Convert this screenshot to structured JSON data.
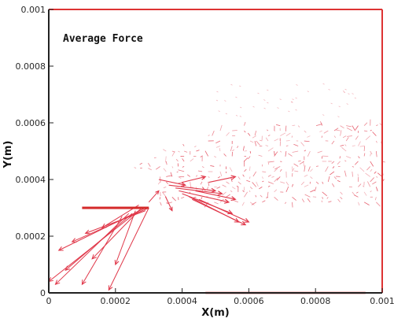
{
  "chart_data": {
    "type": "scatter",
    "title": "Average Force",
    "xlabel": "X(m)",
    "ylabel": "Y(m)",
    "xlim": [
      0,
      0.001
    ],
    "ylim": [
      0,
      0.001
    ],
    "x_ticks": [
      "0",
      "0.0002",
      "0.0004",
      "0.0006",
      "0.0008",
      "0.001"
    ],
    "y_ticks": [
      "0",
      "0.0002",
      "0.0004",
      "0.0006",
      "0.0008",
      "0.001"
    ],
    "grid": false,
    "colors": {
      "frame": "#dd3333",
      "vectors": "#e0384a",
      "plate": "#d42a2a",
      "axis": "#222222"
    },
    "plate_segments": [
      {
        "x": [
          0.0001,
          0.0003
        ],
        "y": [
          0.0003,
          0.0003
        ]
      },
      {
        "x": [
          0.00047,
          0.00095
        ],
        "y": [
          0.0,
          0.0
        ]
      }
    ],
    "vector_field": {
      "grid_x": [
        0.0001,
        0.001
      ],
      "grid_y_top": [
        0.00045,
        0.0006
      ],
      "grid_y_bottom": 0.00032,
      "spacing": 1.8e-05
    },
    "jet_vectors": [
      {
        "from": [
          0.0003,
          0.0003
        ],
        "to": [
          7e-05,
          0.00018
        ]
      },
      {
        "from": [
          0.00029,
          0.0003
        ],
        "to": [
          3e-05,
          0.00015
        ]
      },
      {
        "from": [
          0.00028,
          0.0003
        ],
        "to": [
          0.0,
          4e-05
        ]
      },
      {
        "from": [
          0.00027,
          0.00029
        ],
        "to": [
          0.00013,
          0.00012
        ]
      },
      {
        "from": [
          0.00026,
          0.00029
        ],
        "to": [
          0.0002,
          0.0001
        ]
      },
      {
        "from": [
          0.00025,
          0.00028
        ],
        "to": [
          5e-05,
          8e-05
        ]
      },
      {
        "from": [
          0.00024,
          0.00028
        ],
        "to": [
          2e-05,
          3e-05
        ]
      },
      {
        "from": [
          0.00022,
          0.00027
        ],
        "to": [
          0.0001,
          3e-05
        ]
      },
      {
        "from": [
          0.0003,
          0.0003
        ],
        "to": [
          0.00018,
          1e-05
        ]
      },
      {
        "from": [
          0.00029,
          0.00029
        ],
        "to": [
          0.00011,
          0.00021
        ]
      },
      {
        "from": [
          0.00027,
          0.00031
        ],
        "to": [
          0.00016,
          0.00023
        ]
      },
      {
        "from": [
          0.0003,
          0.00032
        ],
        "to": [
          0.00033,
          0.00036
        ]
      }
    ],
    "vortex_vectors": [
      {
        "from": [
          0.00038,
          0.00037
        ],
        "to": [
          0.00052,
          0.00035
        ]
      },
      {
        "from": [
          0.00039,
          0.00036
        ],
        "to": [
          0.00054,
          0.00032
        ]
      },
      {
        "from": [
          0.0004,
          0.00035
        ],
        "to": [
          0.00055,
          0.00028
        ]
      },
      {
        "from": [
          0.00042,
          0.00034
        ],
        "to": [
          0.00057,
          0.00025
        ]
      },
      {
        "from": [
          0.00043,
          0.00033
        ],
        "to": [
          0.00059,
          0.00024
        ]
      },
      {
        "from": [
          0.00045,
          0.00033
        ],
        "to": [
          0.0006,
          0.00025
        ]
      },
      {
        "from": [
          0.00044,
          0.00036
        ],
        "to": [
          0.00056,
          0.00033
        ]
      },
      {
        "from": [
          0.00036,
          0.00038
        ],
        "to": [
          0.0005,
          0.00036
        ]
      },
      {
        "from": [
          0.00048,
          0.00039
        ],
        "to": [
          0.00056,
          0.00041
        ]
      },
      {
        "from": [
          0.0004,
          0.00039
        ],
        "to": [
          0.00047,
          0.00041
        ]
      },
      {
        "from": [
          0.00033,
          0.0004
        ],
        "to": [
          0.00041,
          0.00038
        ]
      },
      {
        "from": [
          0.00035,
          0.00034
        ],
        "to": [
          0.00037,
          0.00029
        ]
      }
    ]
  }
}
